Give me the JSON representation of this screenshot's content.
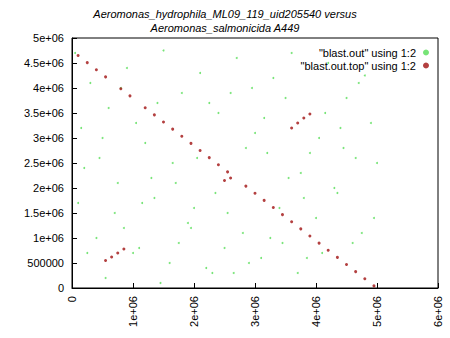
{
  "chart_data": {
    "type": "scatter",
    "title": "Aeromonas_hydrophila_ML09_119_uid205540 versus\nAeromonas_salmonicida A449",
    "legend": "top-right",
    "grid": false,
    "xlim": [
      0,
      6000000
    ],
    "xticks": [
      0,
      {
        "value": 1000000,
        "label": "1e+06"
      },
      {
        "value": 2000000,
        "label": "2e+06"
      },
      {
        "value": 3000000,
        "label": "3e+06"
      },
      {
        "value": 4000000,
        "label": "4e+06"
      },
      {
        "value": 5000000,
        "label": "5e+06"
      },
      {
        "value": 6000000,
        "label": "6e+06"
      }
    ],
    "ylim": [
      0,
      5000000
    ],
    "yticks": [
      0,
      500000,
      {
        "value": 1000000,
        "label": "1e+06"
      },
      {
        "value": 1500000,
        "label": "1.5e+06"
      },
      {
        "value": 2000000,
        "label": "2e+06"
      },
      {
        "value": 2500000,
        "label": "2.5e+06"
      },
      {
        "value": 3000000,
        "label": "3e+06"
      },
      {
        "value": 3500000,
        "label": "3.5e+06"
      },
      {
        "value": 4000000,
        "label": "4e+06"
      },
      {
        "value": 4500000,
        "label": "4.5e+06"
      },
      {
        "value": 5000000,
        "label": "5e+06"
      }
    ],
    "series": [
      {
        "name": "\"blast.out\" using 1:2",
        "color": "#55dd55",
        "marker": "dot",
        "x": [
          50000,
          300000,
          600000,
          900000,
          1200000,
          1500000,
          1800000,
          2100000,
          2400000,
          2700000,
          3000000,
          3300000,
          3600000,
          3900000,
          4200000,
          4500000,
          4800000,
          150000,
          450000,
          750000,
          1050000,
          1350000,
          1650000,
          1950000,
          2250000,
          2550000,
          2850000,
          3150000,
          3450000,
          3750000,
          4050000,
          4350000,
          4650000,
          4950000,
          100000,
          400000,
          700000,
          1000000,
          1300000,
          1600000,
          1900000,
          2200000,
          2500000,
          2800000,
          3100000,
          3400000,
          3700000,
          4000000,
          4300000,
          4600000,
          4900000,
          250000,
          550000,
          850000,
          1150000,
          1450000,
          1750000,
          2050000,
          2350000,
          2650000,
          2950000,
          3250000,
          3550000,
          3850000,
          4150000,
          4450000,
          4750000,
          200000,
          500000,
          800000,
          1100000,
          1400000,
          1700000,
          2000000,
          2300000,
          2600000,
          2900000,
          3200000,
          3500000,
          3800000,
          4100000,
          4400000,
          4700000,
          5000000
        ],
        "y": [
          4700000,
          4100000,
          3600000,
          4400000,
          2900000,
          4750000,
          3900000,
          4300000,
          3500000,
          4600000,
          3100000,
          4200000,
          4700000,
          2700000,
          4500000,
          3800000,
          4250000,
          3200000,
          2600000,
          2100000,
          3300000,
          1800000,
          2500000,
          1200000,
          3700000,
          1500000,
          2800000,
          3400000,
          900000,
          2300000,
          3000000,
          1900000,
          2600000,
          1400000,
          1700000,
          1000000,
          1500000,
          700000,
          2200000,
          500000,
          1300000,
          400000,
          800000,
          1100000,
          600000,
          1600000,
          300000,
          1400000,
          2000000,
          900000,
          3300000,
          700000,
          200000,
          1200000,
          1700000,
          100000,
          900000,
          2600000,
          1900000,
          300000,
          4000000,
          1000000,
          2200000,
          600000,
          3500000,
          2800000,
          1100000,
          2400000,
          3000000,
          4000000,
          800000,
          3700000,
          2100000,
          1600000,
          300000,
          3900000,
          500000,
          2700000,
          3800000,
          1800000,
          700000,
          3200000,
          4100000,
          2500000
        ]
      },
      {
        "name": "\"blast.out.top\" using 1:2",
        "color": "#a01010",
        "marker": "dot",
        "x": [
          100000,
          250000,
          400000,
          550000,
          800000,
          950000,
          1200000,
          1350000,
          1500000,
          1650000,
          1800000,
          1950000,
          2100000,
          2250000,
          2400000,
          2550000,
          2850000,
          3000000,
          3150000,
          3300000,
          3450000,
          3600000,
          3750000,
          3900000,
          4050000,
          4200000,
          4350000,
          4500000,
          4650000,
          4800000,
          4950000,
          550000,
          650000,
          750000,
          850000,
          3600000,
          3700000,
          3800000,
          3900000,
          2500000,
          2600000
        ],
        "y": [
          4650000,
          4507500,
          4365000,
          4222500,
          3985000,
          3842500,
          3605000,
          3462500,
          3320000,
          3177500,
          3035000,
          2892500,
          2750000,
          2607500,
          2465000,
          2322500,
          2037500,
          1895000,
          1752500,
          1610000,
          1467500,
          1325000,
          1182500,
          1040000,
          897500,
          755000,
          612500,
          470000,
          327500,
          185000,
          42500,
          550000,
          620000,
          700000,
          780000,
          3200000,
          3300000,
          3400000,
          3480000,
          2150000,
          2200000
        ]
      }
    ]
  }
}
